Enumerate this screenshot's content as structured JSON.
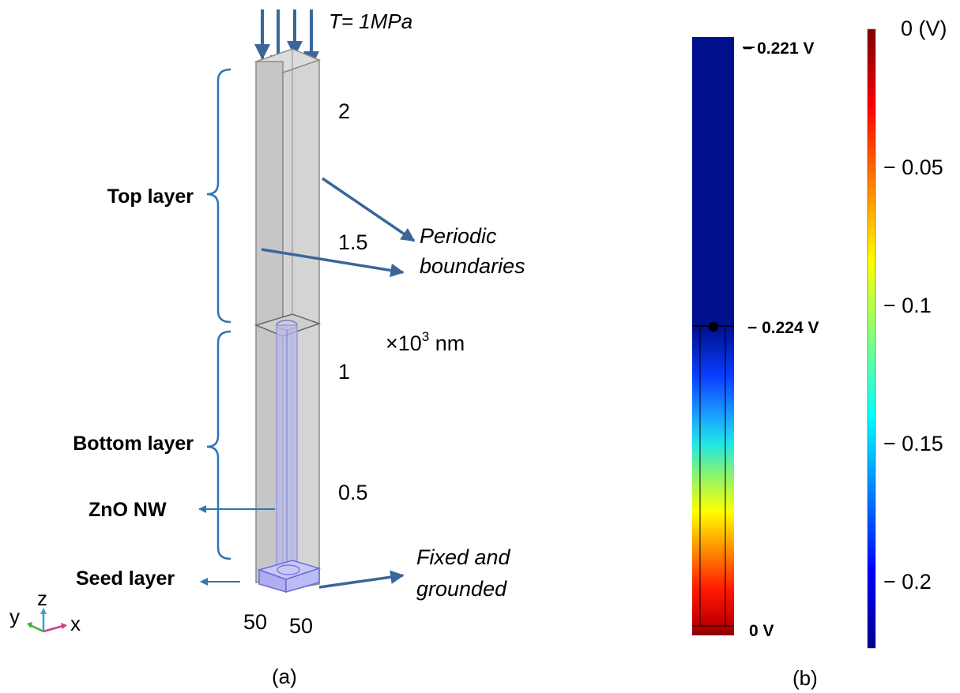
{
  "panel_a": {
    "load_label": "T= 1MPa",
    "layer_labels": {
      "top": "Top layer",
      "bottom": "Bottom layer",
      "nanowire": "ZnO NW",
      "seed": "Seed layer"
    },
    "z_ticks": [
      "2",
      "1.5",
      "1",
      "0.5"
    ],
    "z_unit_prefix": "×10",
    "z_unit_exp": "3",
    "z_unit_suffix": " nm",
    "base_ticks": [
      "50",
      "50"
    ],
    "annotation_periodic_line1": "Periodic",
    "annotation_periodic_line2": "boundaries",
    "annotation_fixed_line1": "Fixed and",
    "annotation_fixed_line2": "grounded",
    "axis_triad": {
      "y": "y",
      "z": "z",
      "x": "x"
    },
    "caption": "(a)"
  },
  "panel_b": {
    "top_value": "− 0.221 V",
    "interface_value": "− 0.224 V",
    "bottom_value": "0 V",
    "caption": "(b)"
  },
  "colorbar": {
    "top_label": "0 (V)",
    "ticks": [
      "− 0.05",
      "− 0.1",
      "− 0.15",
      "− 0.2"
    ],
    "tick_values": [
      -0.05,
      -0.1,
      -0.15,
      -0.2
    ],
    "range": [
      -0.224,
      0
    ],
    "colormap": "jet"
  },
  "colors": {
    "arrow_blue": "#3a6699",
    "bracket_blue": "#2e75b6",
    "column_gray": "#c8c8c8",
    "nanowire_violet": "#b8b8ec",
    "field_navy": "#000f8c",
    "bar_dark_red": "#7f0000"
  }
}
